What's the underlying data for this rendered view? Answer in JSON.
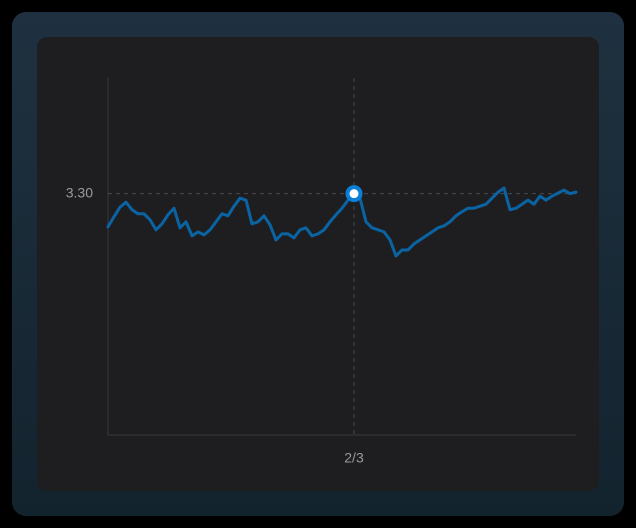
{
  "chart_data": {
    "type": "line",
    "categories": [
      null,
      null,
      null,
      null,
      null,
      null,
      null,
      null,
      null,
      null,
      null,
      null,
      null,
      null,
      null,
      null,
      null,
      null,
      null,
      null,
      null,
      null,
      null,
      null,
      null,
      null,
      null,
      null,
      null,
      null,
      null,
      null,
      null,
      null,
      null,
      null,
      null,
      null,
      null,
      null,
      null,
      "2/3",
      null,
      null,
      null,
      null,
      null,
      null,
      null,
      null,
      null,
      null,
      null,
      null,
      null,
      null,
      null,
      null,
      null,
      null,
      null,
      null,
      null,
      null,
      null,
      null,
      null,
      null,
      null,
      null,
      null,
      null,
      null,
      null,
      null,
      null,
      null,
      null,
      null
    ],
    "series": [
      {
        "color": "#0a64a4",
        "values": [
          3.234,
          3.254,
          3.273,
          3.283,
          3.268,
          3.26,
          3.26,
          3.248,
          3.228,
          3.24,
          3.258,
          3.271,
          3.232,
          3.244,
          3.216,
          3.224,
          3.218,
          3.228,
          3.244,
          3.26,
          3.256,
          3.275,
          3.291,
          3.287,
          3.24,
          3.244,
          3.256,
          3.238,
          3.208,
          3.22,
          3.22,
          3.212,
          3.228,
          3.232,
          3.216,
          3.22,
          3.228,
          3.244,
          3.258,
          3.271,
          3.287,
          3.3,
          3.291,
          3.244,
          3.232,
          3.228,
          3.224,
          3.208,
          3.176,
          3.188,
          3.188,
          3.2,
          3.208,
          3.216,
          3.224,
          3.232,
          3.236,
          3.244,
          3.256,
          3.264,
          3.271,
          3.271,
          3.275,
          3.279,
          3.291,
          3.303,
          3.311,
          3.268,
          3.271,
          3.279,
          3.287,
          3.279,
          3.295,
          3.287,
          3.295,
          3.301,
          3.307,
          3.3,
          3.303
        ]
      }
    ],
    "ylim": [
      2.82,
      3.53
    ],
    "yticks": [
      {
        "value": 3.3,
        "label": "3.30"
      }
    ]
  }
}
